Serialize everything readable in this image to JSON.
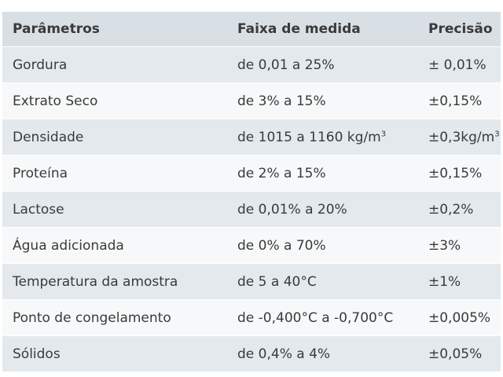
{
  "table": {
    "headers": [
      "Parâmetros",
      "Faixa de medida",
      "Precisão"
    ],
    "rows": [
      {
        "param": "Gordura",
        "range": "de 0,01 a 25%",
        "range_sup": "",
        "precision": "± 0,01%",
        "precision_sup": ""
      },
      {
        "param": "Extrato Seco",
        "range": "de 3% a 15%",
        "range_sup": "",
        "precision": "±0,15%",
        "precision_sup": ""
      },
      {
        "param": "Densidade",
        "range": "de 1015 a 1160 kg/m",
        "range_sup": "3",
        "precision": "±0,3kg/m",
        "precision_sup": "3"
      },
      {
        "param": "Proteína",
        "range": "de 2% a 15%",
        "range_sup": "",
        "precision": "±0,15%",
        "precision_sup": ""
      },
      {
        "param": "Lactose",
        "range": "de 0,01% a 20%",
        "range_sup": "",
        "precision": "±0,2%",
        "precision_sup": ""
      },
      {
        "param": "Água adicionada",
        "range": "de 0% a 70%",
        "range_sup": "",
        "precision": "±3%",
        "precision_sup": ""
      },
      {
        "param": "Temperatura da amostra",
        "range": "de 5 a 40°C",
        "range_sup": "",
        "precision": "±1%",
        "precision_sup": ""
      },
      {
        "param": "Ponto de congelamento",
        "range": "de -0,400°C a -0,700°C",
        "range_sup": "",
        "precision": "±0,005%",
        "precision_sup": ""
      },
      {
        "param": "Sólidos",
        "range": "de 0,4% a 4%",
        "range_sup": "",
        "precision": "±0,05%",
        "precision_sup": ""
      }
    ]
  }
}
